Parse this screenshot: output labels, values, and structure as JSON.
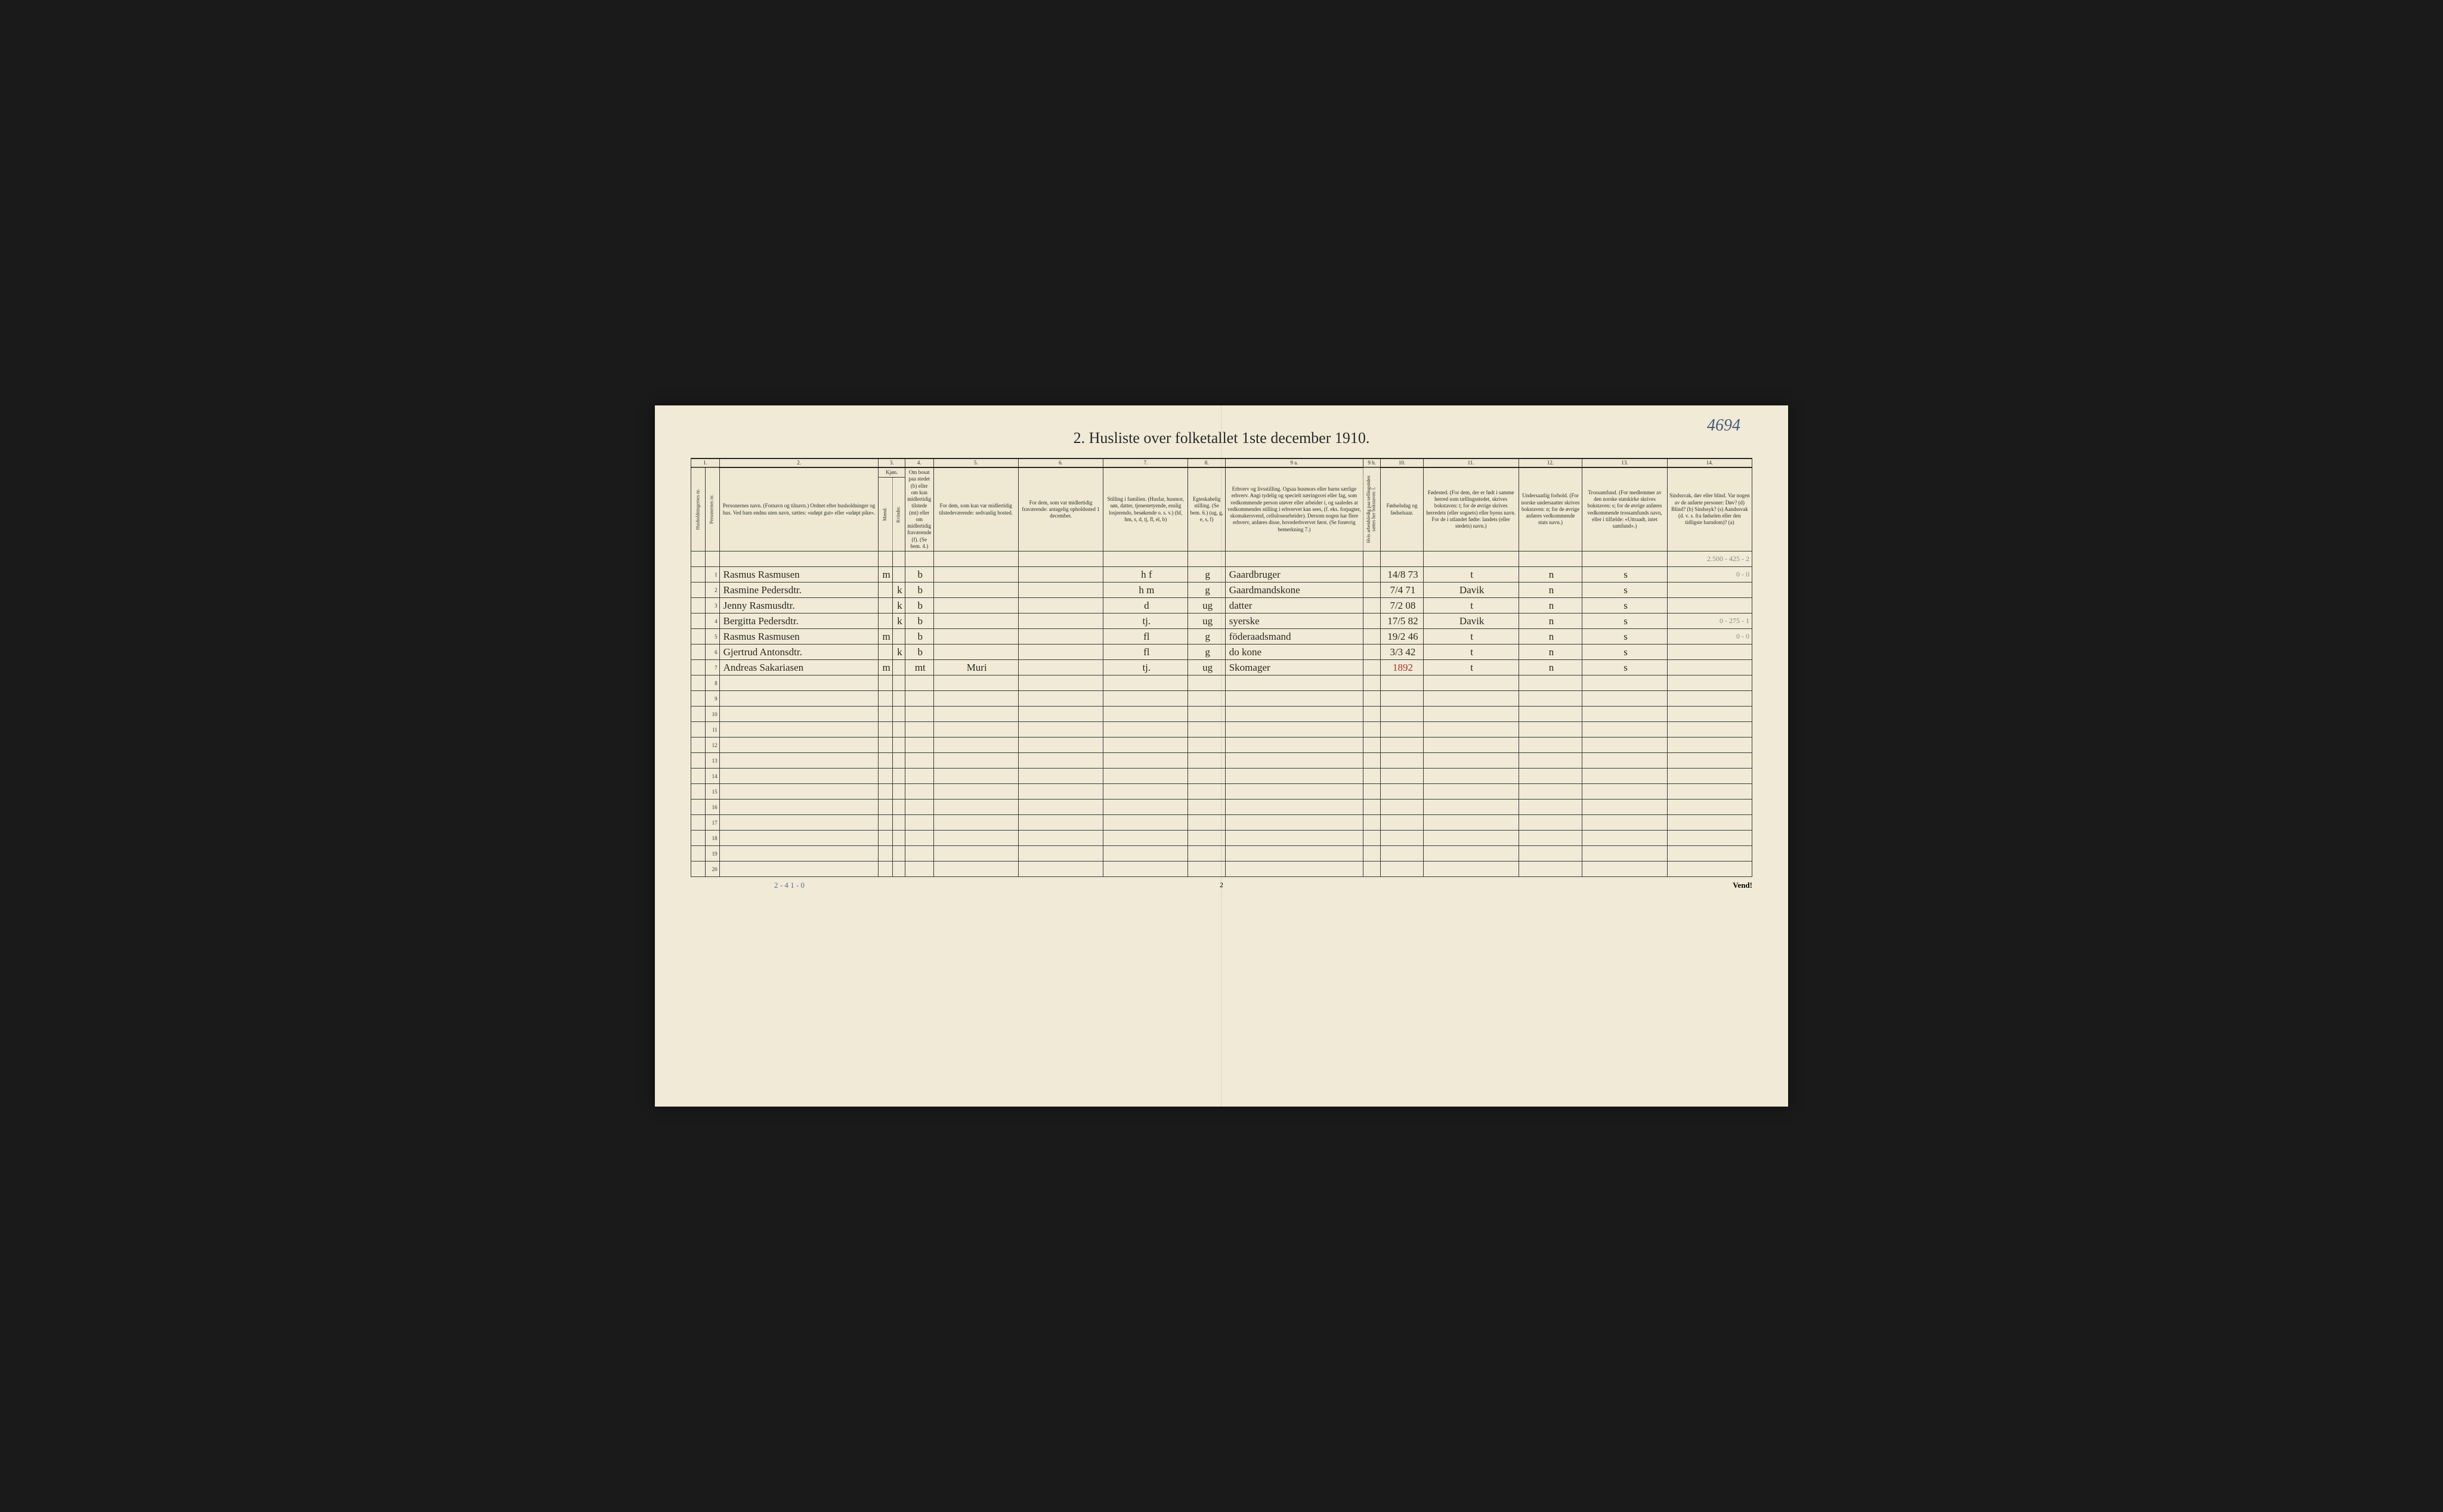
{
  "corner_number": "4694",
  "title": "2.  Husliste over folketallet 1ste december 1910.",
  "colnums": [
    "1.",
    "2.",
    "3.",
    "4.",
    "5.",
    "6.",
    "7.",
    "8.",
    "9 a.",
    "9 b.",
    "10.",
    "11.",
    "12.",
    "13.",
    "14."
  ],
  "headers": {
    "hush": "Husholdningernes nr.",
    "pers": "Personernes nr.",
    "name": "Personernes navn.\n(Fornavn og tilnavn.)\nOrdnet efter husholdninger og hus.\nVed barn endnu uten navn, sættes: «udøpt gut» eller «udøpt pike».",
    "kjon": "Kjøn.",
    "mand": "Mænd.",
    "kvinder": "Kvinder.",
    "mk": "m.   k.",
    "bosat": "Om bosat paa stedet (b) eller om kun midlertidig tilstede (mt) eller om midlertidig fraværende (f). (Se bem. 4.)",
    "c5": "For dem, som kun var midlertidig tilstedeværende:\nsedvanlig bosted.",
    "c6": "For dem, som var midlertidig fraværende:\nantagelig opholdssted 1 december.",
    "c7": "Stilling i familien.\n(Husfar, husmor, søn, datter, tjenestetyende, enslig losjerendo, besøkende o. s. v.)\n(hf, hm, s, d, tj, fl, el, b)",
    "c8": "Egteskabelig stilling.\n(Se bem. 6.)\n(ug, g, e, s, f)",
    "c9a": "Erhverv og livsstilling.\nOgsaa husmors eller barns særlige erhverv.\nAngi tydelig og specielt næringsvei eller fag, som vedkommende person utøver eller arbeider i, og saaledes at vedkommendes stilling i erhvervet kan sees, (f. eks. forpagter, skomakersvend, cellulosearbeider). Dersom nogen har flere erhverv, anføres disse, hovederhvervet først.\n(Se forøvrig bemerkning 7.)",
    "c9b": "Hvis arbeidsledig paa tællingstiden sættes her bokstaven: l.",
    "c10": "Fødselsdag og fødselsaar.",
    "c11": "Fødested.\n(For dem, der er født i samme herred som tællingsstedet, skrives bokstaven: t; for de øvrige skrives herredets (eller sognets) eller byens navn. For de i utlandet fødte: landets (eller stedets) navn.)",
    "c12": "Undersaatlig forhold.\n(For norske undersaatter skrives bokstaven: n; for de øvrige anføres vedkommende stats navn.)",
    "c13": "Trossamfund.\n(For medlemmer av den norske statskirke skrives bokstaven: s; for de øvrige anføres vedkommende trossamfunds navn, eller i tilfælde: «Uttraadt, intet samfund».)",
    "c14": "Sindssvak, døv eller blind.\nVar nogen av de anførte personer:\nDøv? (d)\nBlind? (b)\nSindssyk? (s)\nAandssvak (d. v. s. fra fødselen eller den tidligste barndom)? (a)"
  },
  "top_pencil": "2.500 - 425 - 2",
  "rows": [
    {
      "n": "1",
      "name": "Rasmus Rasmusen",
      "sex": "m",
      "b": "b",
      "c5": "",
      "c6": "",
      "c7": "h f",
      "c8": "g",
      "c9": "Gaardbruger",
      "c10": "14/8 73",
      "c11": "t",
      "c12": "n",
      "c13": "s",
      "c14": "0 - 0"
    },
    {
      "n": "2",
      "name": "Rasmine Pedersdtr.",
      "sex": "k",
      "b": "b",
      "c5": "",
      "c6": "",
      "c7": "h m",
      "c8": "g",
      "c9": "Gaardmandskone",
      "c10": "7/4 71",
      "c11": "Davik",
      "c12": "n",
      "c13": "s",
      "c14": ""
    },
    {
      "n": "3",
      "name": "Jenny Rasmusdtr.",
      "sex": "k",
      "b": "b",
      "c5": "",
      "c6": "",
      "c7": "d",
      "c8": "ug",
      "c9": "datter",
      "c10": "7/2 08",
      "c11": "t",
      "c12": "n",
      "c13": "s",
      "c14": ""
    },
    {
      "n": "4",
      "name": "Bergitta Pedersdtr.",
      "sex": "k",
      "b": "b",
      "c5": "",
      "c6": "",
      "c7": "tj.",
      "c8": "ug",
      "c9": "syerske",
      "c10": "17/5 82",
      "c11": "Davik",
      "c12": "n",
      "c13": "s",
      "c14": "0 - 275 - 1"
    },
    {
      "n": "5",
      "name": "Rasmus Rasmusen",
      "sex": "m",
      "b": "b",
      "c5": "",
      "c6": "",
      "c7": "fl",
      "c8": "g",
      "c9": "föderaadsmand",
      "c10": "19/2 46",
      "c11": "t",
      "c12": "n",
      "c13": "s",
      "c14": "0 - 0"
    },
    {
      "n": "6",
      "name": "Gjertrud Antonsdtr.",
      "sex": "k",
      "b": "b",
      "c5": "",
      "c6": "",
      "c7": "fl",
      "c8": "g",
      "c9": "do   kone",
      "c10": "3/3 42",
      "c11": "t",
      "c12": "n",
      "c13": "s",
      "c14": ""
    },
    {
      "n": "7",
      "name": "Andreas Sakariasen",
      "sex": "m",
      "b": "mt",
      "c5": "Muri",
      "c6": "",
      "c7": "tj.",
      "c8": "ug",
      "c9": "Skomager",
      "c10": "1892",
      "c10red": true,
      "c11": "t",
      "c12": "n",
      "c13": "s",
      "c14": ""
    }
  ],
  "empty_rows": [
    8,
    9,
    10,
    11,
    12,
    13,
    14,
    15,
    16,
    17,
    18,
    19,
    20
  ],
  "bottom_left_note": "2 - 4   1 - 0",
  "page_number": "2",
  "vend": "Vend!"
}
